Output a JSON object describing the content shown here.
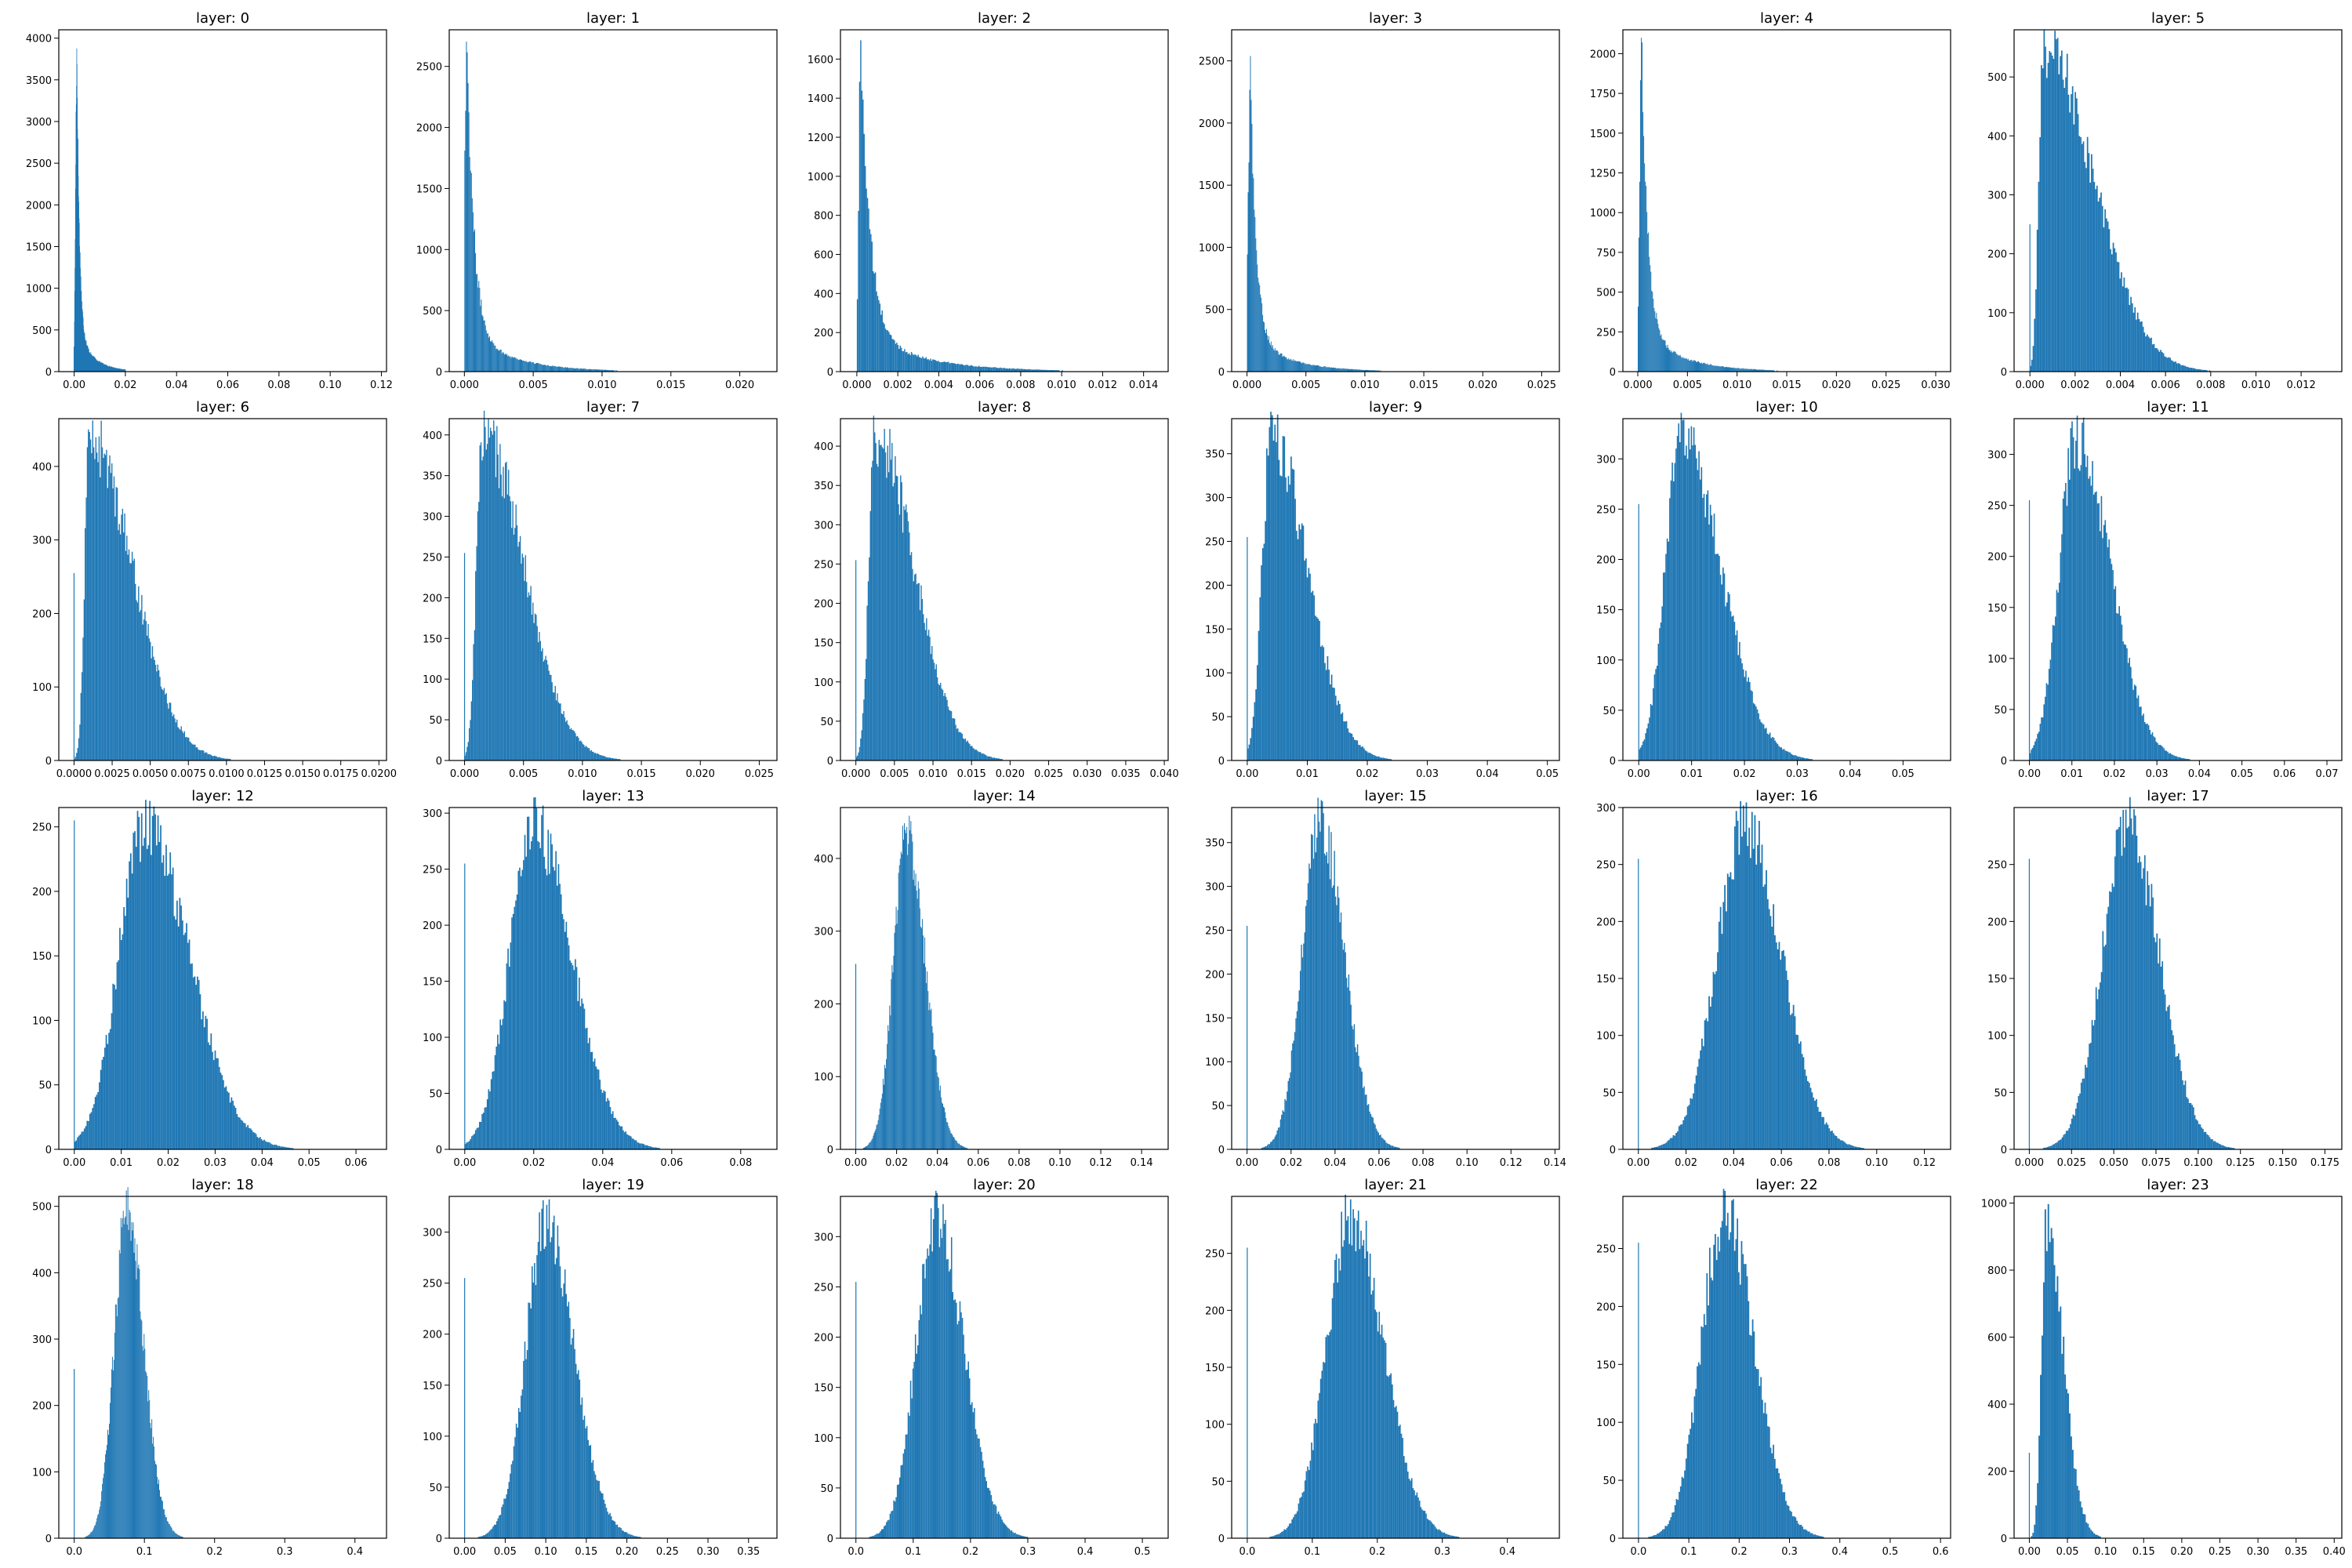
{
  "chart_data": [
    {
      "type": "bar",
      "title": "layer: 0",
      "xticks": [
        "0.00",
        "0.02",
        "0.04",
        "0.06",
        "0.08",
        "0.10",
        "0.12"
      ],
      "xtick_values": [
        0,
        0.02,
        0.04,
        0.06,
        0.08,
        0.1,
        0.12
      ],
      "xlim": [
        -0.006,
        0.122
      ],
      "yticks": [
        0,
        500,
        1000,
        1500,
        2000,
        2500,
        3000,
        3500,
        4000
      ],
      "ylim": [
        0,
        4100
      ],
      "hist": {
        "zero_spike": 300,
        "shape": "decay",
        "mode": 0.001,
        "spread_left": 0.0005,
        "spread_right": 0.004,
        "peak": 3850,
        "x_max": 0.02
      }
    },
    {
      "type": "bar",
      "title": "layer: 1",
      "xticks": [
        "0.000",
        "0.005",
        "0.010",
        "0.015",
        "0.020"
      ],
      "xtick_values": [
        0,
        0.005,
        0.01,
        0.015,
        0.02
      ],
      "xlim": [
        -0.0011,
        0.0227
      ],
      "yticks": [
        0,
        500,
        1000,
        1500,
        2000,
        2500
      ],
      "ylim": [
        0,
        2800
      ],
      "hist": {
        "zero_spike": 0,
        "shape": "decay",
        "mode": 0.0002,
        "spread_left": 0.0002,
        "spread_right": 0.002,
        "peak": 2700,
        "x_max": 0.012
      }
    },
    {
      "type": "bar",
      "title": "layer: 2",
      "xticks": [
        "0.000",
        "0.002",
        "0.004",
        "0.006",
        "0.008",
        "0.010",
        "0.012",
        "0.014"
      ],
      "xtick_values": [
        0,
        0.002,
        0.004,
        0.006,
        0.008,
        0.01,
        0.012,
        0.014
      ],
      "xlim": [
        -0.0008,
        0.0152
      ],
      "yticks": [
        0,
        200,
        400,
        600,
        800,
        1000,
        1200,
        1400,
        1600
      ],
      "ylim": [
        0,
        1750
      ],
      "hist": {
        "zero_spike": 0,
        "shape": "decay",
        "mode": 0.0002,
        "spread_left": 0.0001,
        "spread_right": 0.0018,
        "peak": 1680,
        "x_max": 0.011
      }
    },
    {
      "type": "bar",
      "title": "layer: 3",
      "xticks": [
        "0.000",
        "0.005",
        "0.010",
        "0.015",
        "0.020",
        "0.025"
      ],
      "xtick_values": [
        0,
        0.005,
        0.01,
        0.015,
        0.02,
        0.025
      ],
      "xlim": [
        -0.0013,
        0.0265
      ],
      "yticks": [
        0,
        500,
        1000,
        1500,
        2000,
        2500
      ],
      "ylim": [
        0,
        2750
      ],
      "hist": {
        "zero_spike": 0,
        "shape": "decay",
        "mode": 0.0003,
        "spread_left": 0.0002,
        "spread_right": 0.002,
        "peak": 2330,
        "x_max": 0.013
      }
    },
    {
      "type": "bar",
      "title": "layer: 4",
      "xticks": [
        "0.000",
        "0.005",
        "0.010",
        "0.015",
        "0.020",
        "0.025",
        "0.030"
      ],
      "xtick_values": [
        0,
        0.005,
        0.01,
        0.015,
        0.02,
        0.025,
        0.03
      ],
      "xlim": [
        -0.0015,
        0.0315
      ],
      "yticks": [
        0,
        250,
        500,
        750,
        1000,
        1250,
        1500,
        1750,
        2000
      ],
      "ylim": [
        0,
        2150
      ],
      "hist": {
        "zero_spike": 0,
        "shape": "decay",
        "mode": 0.0004,
        "spread_left": 0.0002,
        "spread_right": 0.0025,
        "peak": 2060,
        "x_max": 0.016
      }
    },
    {
      "type": "bar",
      "title": "layer: 5",
      "xticks": [
        "0.000",
        "0.002",
        "0.004",
        "0.006",
        "0.008",
        "0.010",
        "0.012"
      ],
      "xtick_values": [
        0,
        0.002,
        0.004,
        0.006,
        0.008,
        0.01,
        0.012
      ],
      "xlim": [
        -0.0007,
        0.0138
      ],
      "yticks": [
        0,
        100,
        200,
        300,
        400,
        500
      ],
      "ylim": [
        0,
        580
      ],
      "hist": {
        "zero_spike": 250,
        "shape": "skew",
        "mode": 0.0006,
        "spread_left": 0.0002,
        "spread_right": 0.0022,
        "peak": 550,
        "x_max": 0.012
      }
    },
    {
      "type": "bar",
      "title": "layer: 6",
      "xticks": [
        "0.0000",
        "0.0025",
        "0.0050",
        "0.0075",
        "0.0100",
        "0.0125",
        "0.0150",
        "0.0175",
        "0.0200"
      ],
      "xtick_values": [
        0,
        0.0025,
        0.005,
        0.0075,
        0.01,
        0.0125,
        0.015,
        0.0175,
        0.02
      ],
      "xlim": [
        -0.001,
        0.0205
      ],
      "yticks": [
        0,
        100,
        200,
        300,
        400
      ],
      "ylim": [
        0,
        465
      ],
      "hist": {
        "zero_spike": 255,
        "shape": "skew",
        "mode": 0.001,
        "spread_left": 0.0003,
        "spread_right": 0.0028,
        "peak": 438,
        "x_max": 0.014
      }
    },
    {
      "type": "bar",
      "title": "layer: 7",
      "xticks": [
        "0.000",
        "0.005",
        "0.010",
        "0.015",
        "0.020",
        "0.025"
      ],
      "xtick_values": [
        0,
        0.005,
        0.01,
        0.015,
        0.02,
        0.025
      ],
      "xlim": [
        -0.0013,
        0.0265
      ],
      "yticks": [
        0,
        50,
        100,
        150,
        200,
        250,
        300,
        350,
        400
      ],
      "ylim": [
        0,
        420
      ],
      "hist": {
        "zero_spike": 255,
        "shape": "skew",
        "mode": 0.0015,
        "spread_left": 0.0005,
        "spread_right": 0.0035,
        "peak": 400,
        "x_max": 0.018
      }
    },
    {
      "type": "bar",
      "title": "layer: 8",
      "xticks": [
        "0.000",
        "0.005",
        "0.010",
        "0.015",
        "0.020",
        "0.025",
        "0.030",
        "0.035",
        "0.040"
      ],
      "xtick_values": [
        0,
        0.005,
        0.01,
        0.015,
        0.02,
        0.025,
        0.03,
        0.035,
        0.04
      ],
      "xlim": [
        -0.002,
        0.0405
      ],
      "yticks": [
        0,
        50,
        100,
        150,
        200,
        250,
        300,
        350,
        400
      ],
      "ylim": [
        0,
        435
      ],
      "hist": {
        "zero_spike": 255,
        "shape": "skew",
        "mode": 0.0025,
        "spread_left": 0.0008,
        "spread_right": 0.005,
        "peak": 415,
        "x_max": 0.028
      }
    },
    {
      "type": "bar",
      "title": "layer: 9",
      "xticks": [
        "0.00",
        "0.01",
        "0.02",
        "0.03",
        "0.04",
        "0.05"
      ],
      "xtick_values": [
        0,
        0.01,
        0.02,
        0.03,
        0.04,
        0.05
      ],
      "xlim": [
        -0.0026,
        0.052
      ],
      "yticks": [
        0,
        50,
        100,
        150,
        200,
        250,
        300,
        350
      ],
      "ylim": [
        0,
        390
      ],
      "hist": {
        "zero_spike": 255,
        "shape": "skew",
        "mode": 0.004,
        "spread_left": 0.0015,
        "spread_right": 0.006,
        "peak": 368,
        "x_max": 0.045
      }
    },
    {
      "type": "bar",
      "title": "layer: 10",
      "xticks": [
        "0.00",
        "0.01",
        "0.02",
        "0.03",
        "0.04",
        "0.05"
      ],
      "xtick_values": [
        0,
        0.01,
        0.02,
        0.03,
        0.04,
        0.05
      ],
      "xlim": [
        -0.003,
        0.059
      ],
      "yticks": [
        0,
        50,
        100,
        150,
        200,
        250,
        300
      ],
      "ylim": [
        0,
        340
      ],
      "hist": {
        "zero_spike": 255,
        "shape": "skew",
        "mode": 0.008,
        "spread_left": 0.003,
        "spread_right": 0.0075,
        "peak": 320,
        "x_max": 0.048
      }
    },
    {
      "type": "bar",
      "title": "layer: 11",
      "xticks": [
        "0.00",
        "0.01",
        "0.02",
        "0.03",
        "0.04",
        "0.05",
        "0.06",
        "0.07"
      ],
      "xtick_values": [
        0,
        0.01,
        0.02,
        0.03,
        0.04,
        0.05,
        0.06,
        0.07
      ],
      "xlim": [
        -0.0036,
        0.0735
      ],
      "yticks": [
        0,
        50,
        100,
        150,
        200,
        250,
        300
      ],
      "ylim": [
        0,
        335
      ],
      "hist": {
        "zero_spike": 255,
        "shape": "skew",
        "mode": 0.011,
        "spread_left": 0.004,
        "spread_right": 0.008,
        "peak": 315,
        "x_max": 0.06
      }
    },
    {
      "type": "bar",
      "title": "layer: 12",
      "xticks": [
        "0.00",
        "0.01",
        "0.02",
        "0.03",
        "0.04",
        "0.05",
        "0.06"
      ],
      "xtick_values": [
        0,
        0.01,
        0.02,
        0.03,
        0.04,
        0.05,
        0.06
      ],
      "xlim": [
        -0.0033,
        0.0665
      ],
      "yticks": [
        0,
        50,
        100,
        150,
        200,
        250
      ],
      "ylim": [
        0,
        265
      ],
      "hist": {
        "zero_spike": 255,
        "shape": "skew",
        "mode": 0.015,
        "spread_left": 0.0055,
        "spread_right": 0.0095,
        "peak": 250,
        "x_max": 0.058
      }
    },
    {
      "type": "bar",
      "title": "layer: 13",
      "xticks": [
        "0.00",
        "0.02",
        "0.04",
        "0.06",
        "0.08"
      ],
      "xtick_values": [
        0,
        0.02,
        0.04,
        0.06,
        0.08
      ],
      "xlim": [
        -0.0045,
        0.0905
      ],
      "yticks": [
        0,
        50,
        100,
        150,
        200,
        250,
        300
      ],
      "ylim": [
        0,
        305
      ],
      "hist": {
        "zero_spike": 255,
        "shape": "skew",
        "mode": 0.02,
        "spread_left": 0.007,
        "spread_right": 0.011,
        "peak": 288,
        "x_max": 0.075
      }
    },
    {
      "type": "bar",
      "title": "layer: 14",
      "xticks": [
        "0.00",
        "0.02",
        "0.04",
        "0.06",
        "0.08",
        "0.10",
        "0.12",
        "0.14"
      ],
      "xtick_values": [
        0,
        0.02,
        0.04,
        0.06,
        0.08,
        0.1,
        0.12,
        0.14
      ],
      "xlim": [
        -0.0075,
        0.153
      ],
      "yticks": [
        0,
        100,
        200,
        300,
        400
      ],
      "ylim": [
        0,
        470
      ],
      "hist": {
        "zero_spike": 255,
        "shape": "skew",
        "mode": 0.025,
        "spread_left": 0.0065,
        "spread_right": 0.009,
        "peak": 435,
        "x_max": 0.08
      }
    },
    {
      "type": "bar",
      "title": "layer: 15",
      "xticks": [
        "0.00",
        "0.02",
        "0.04",
        "0.06",
        "0.08",
        "0.10",
        "0.12",
        "0.14"
      ],
      "xtick_values": [
        0,
        0.02,
        0.04,
        0.06,
        0.08,
        0.1,
        0.12,
        0.14
      ],
      "xlim": [
        -0.007,
        0.142
      ],
      "yticks": [
        0,
        50,
        100,
        150,
        200,
        250,
        300,
        350
      ],
      "ylim": [
        0,
        390
      ],
      "hist": {
        "zero_spike": 255,
        "shape": "skew",
        "mode": 0.033,
        "spread_left": 0.008,
        "spread_right": 0.011,
        "peak": 375,
        "x_max": 0.1
      }
    },
    {
      "type": "bar",
      "title": "layer: 16",
      "xticks": [
        "0.00",
        "0.02",
        "0.04",
        "0.06",
        "0.08",
        "0.10",
        "0.12"
      ],
      "xtick_values": [
        0,
        0.02,
        0.04,
        0.06,
        0.08,
        0.1,
        0.12
      ],
      "xlim": [
        -0.0065,
        0.131
      ],
      "yticks": [
        0,
        50,
        100,
        150,
        200,
        250,
        300
      ],
      "ylim": [
        0,
        300
      ],
      "hist": {
        "zero_spike": 255,
        "shape": "skew",
        "mode": 0.045,
        "spread_left": 0.012,
        "spread_right": 0.015,
        "peak": 285,
        "x_max": 0.12
      }
    },
    {
      "type": "bar",
      "title": "layer: 17",
      "xticks": [
        "0.000",
        "0.025",
        "0.050",
        "0.075",
        "0.100",
        "0.125",
        "0.150",
        "0.175"
      ],
      "xtick_values": [
        0,
        0.025,
        0.05,
        0.075,
        0.1,
        0.125,
        0.15,
        0.175
      ],
      "xlim": [
        -0.009,
        0.185
      ],
      "yticks": [
        0,
        50,
        100,
        150,
        200,
        250
      ],
      "ylim": [
        0,
        300
      ],
      "hist": {
        "zero_spike": 255,
        "shape": "skew",
        "mode": 0.058,
        "spread_left": 0.015,
        "spread_right": 0.019,
        "peak": 283,
        "x_max": 0.16
      }
    },
    {
      "type": "bar",
      "title": "layer: 18",
      "xticks": [
        "0.0",
        "0.1",
        "0.2",
        "0.3",
        "0.4"
      ],
      "xtick_values": [
        0,
        0.1,
        0.2,
        0.3,
        0.4
      ],
      "xlim": [
        -0.022,
        0.445
      ],
      "yticks": [
        0,
        100,
        200,
        300,
        400,
        500
      ],
      "ylim": [
        0,
        515
      ],
      "hist": {
        "zero_spike": 255,
        "shape": "skew",
        "mode": 0.075,
        "spread_left": 0.018,
        "spread_right": 0.024,
        "peak": 490,
        "x_max": 0.22
      }
    },
    {
      "type": "bar",
      "title": "layer: 19",
      "xticks": [
        "0.00",
        "0.05",
        "0.10",
        "0.15",
        "0.20",
        "0.25",
        "0.30",
        "0.35"
      ],
      "xtick_values": [
        0,
        0.05,
        0.1,
        0.15,
        0.2,
        0.25,
        0.3,
        0.35
      ],
      "xlim": [
        -0.019,
        0.385
      ],
      "yticks": [
        0,
        50,
        100,
        150,
        200,
        250,
        300
      ],
      "ylim": [
        0,
        335
      ],
      "hist": {
        "zero_spike": 255,
        "shape": "skew",
        "mode": 0.1,
        "spread_left": 0.025,
        "spread_right": 0.035,
        "peak": 305,
        "x_max": 0.3
      }
    },
    {
      "type": "bar",
      "title": "layer: 20",
      "xticks": [
        "0.0",
        "0.1",
        "0.2",
        "0.3",
        "0.4",
        "0.5"
      ],
      "xtick_values": [
        0,
        0.1,
        0.2,
        0.3,
        0.4,
        0.5
      ],
      "xlim": [
        -0.027,
        0.545
      ],
      "yticks": [
        0,
        50,
        100,
        150,
        200,
        250,
        300
      ],
      "ylim": [
        0,
        340
      ],
      "hist": {
        "zero_spike": 255,
        "shape": "skew",
        "mode": 0.14,
        "spread_left": 0.035,
        "spread_right": 0.048,
        "peak": 320,
        "x_max": 0.42
      }
    },
    {
      "type": "bar",
      "title": "layer: 21",
      "xticks": [
        "0.0",
        "0.1",
        "0.2",
        "0.3",
        "0.4"
      ],
      "xtick_values": [
        0,
        0.1,
        0.2,
        0.3,
        0.4
      ],
      "xlim": [
        -0.024,
        0.48
      ],
      "yticks": [
        0,
        50,
        100,
        150,
        200,
        250
      ],
      "ylim": [
        0,
        300
      ],
      "hist": {
        "zero_spike": 255,
        "shape": "skew",
        "mode": 0.16,
        "spread_left": 0.038,
        "spread_right": 0.05,
        "peak": 282,
        "x_max": 0.4
      }
    },
    {
      "type": "bar",
      "title": "layer: 22",
      "xticks": [
        "0.0",
        "0.1",
        "0.2",
        "0.3",
        "0.4",
        "0.5",
        "0.6"
      ],
      "xtick_values": [
        0,
        0.1,
        0.2,
        0.3,
        0.4,
        0.5,
        0.6
      ],
      "xlim": [
        -0.031,
        0.62
      ],
      "yticks": [
        0,
        50,
        100,
        150,
        200,
        250
      ],
      "ylim": [
        0,
        295
      ],
      "hist": {
        "zero_spike": 255,
        "shape": "skew",
        "mode": 0.17,
        "spread_left": 0.045,
        "spread_right": 0.06,
        "peak": 280,
        "x_max": 0.55
      }
    },
    {
      "type": "bar",
      "title": "layer: 23",
      "xticks": [
        "0.00",
        "0.05",
        "0.10",
        "0.15",
        "0.20",
        "0.25",
        "0.30",
        "0.35",
        "0.40"
      ],
      "xtick_values": [
        0,
        0.05,
        0.1,
        0.15,
        0.2,
        0.25,
        0.3,
        0.35,
        0.4
      ],
      "xlim": [
        -0.02,
        0.41
      ],
      "yticks": [
        0,
        200,
        400,
        600,
        800,
        1000
      ],
      "ylim": [
        0,
        1020
      ],
      "hist": {
        "zero_spike": 255,
        "shape": "skew",
        "mode": 0.022,
        "spread_left": 0.006,
        "spread_right": 0.022,
        "peak": 950,
        "x_max": 0.4
      }
    }
  ]
}
